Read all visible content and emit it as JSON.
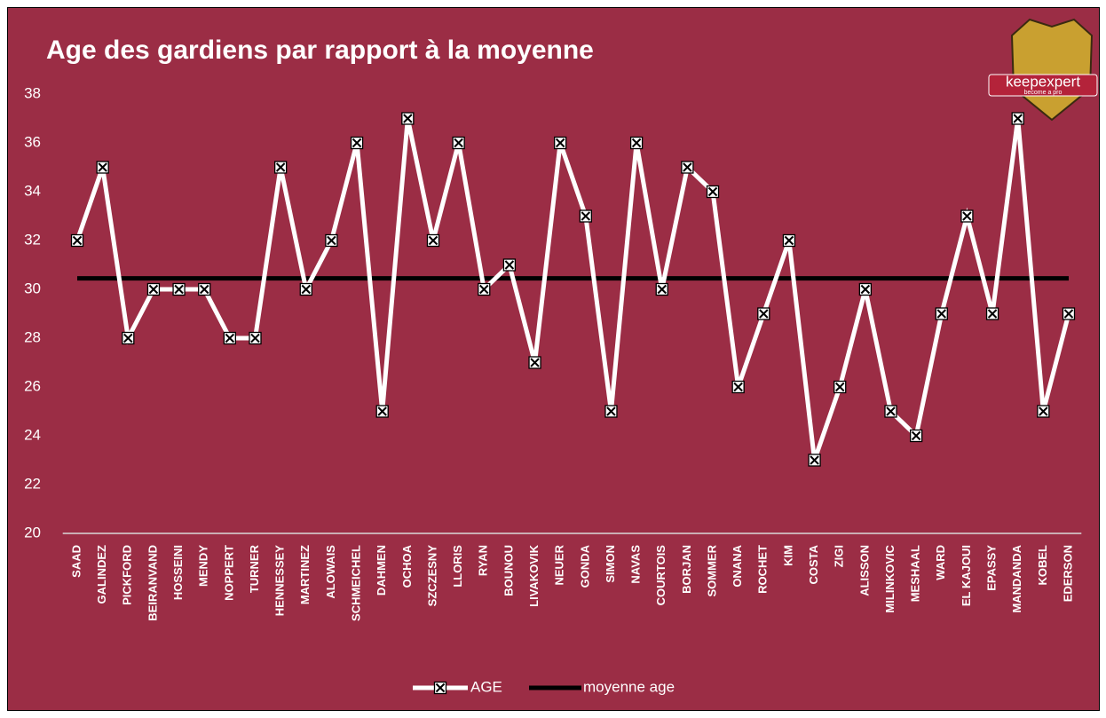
{
  "chart_data": {
    "type": "line",
    "title": "Age des gardiens par rapport à la moyenne",
    "categories": [
      "SAAD",
      "GALINDEZ",
      "PICKFORD",
      "BEIRANVAND",
      "HOSSEINI",
      "MENDY",
      "NOPPERT",
      "TURNER",
      "HENNESSEY",
      "MARTINEZ",
      "ALOWAIS",
      "SCHMEICHEL",
      "DAHMEN",
      "OCHOA",
      "SZCZESNY",
      "LLORIS",
      "RYAN",
      "BOUNOU",
      "LIVAKOVIK",
      "NEUER",
      "GONDA",
      "SIMON",
      "NAVAS",
      "COURTOIS",
      "BORJAN",
      "SOMMER",
      "ONANA",
      "ROCHET",
      "KIM",
      "COSTA",
      "ZIGI",
      "ALISSON",
      "MILINKOVIC",
      "MESHAAL",
      "WARD",
      "EL KAJOUI",
      "EPASSY",
      "MANDANDA",
      "KOBEL",
      "EDERSON"
    ],
    "series": [
      {
        "name": "AGE",
        "color": "#ffffff",
        "marker": "x-square",
        "values": [
          32,
          35,
          28,
          30,
          30,
          30,
          28,
          28,
          35,
          30,
          32,
          36,
          25,
          37,
          32,
          36,
          30,
          31,
          27,
          36,
          33,
          25,
          36,
          30,
          35,
          34,
          26,
          29,
          32,
          23,
          26,
          30,
          25,
          24,
          29,
          33,
          29,
          37,
          25,
          29
        ]
      },
      {
        "name": "moyenne age",
        "color": "#000000",
        "values": [
          30.45,
          30.45,
          30.45,
          30.45,
          30.45,
          30.45,
          30.45,
          30.45,
          30.45,
          30.45,
          30.45,
          30.45,
          30.45,
          30.45,
          30.45,
          30.45,
          30.45,
          30.45,
          30.45,
          30.45,
          30.45,
          30.45,
          30.45,
          30.45,
          30.45,
          30.45,
          30.45,
          30.45,
          30.45,
          30.45,
          30.45,
          30.45,
          30.45,
          30.45,
          30.45,
          30.45,
          30.45,
          30.45,
          30.45,
          30.45
        ]
      }
    ],
    "ylim": [
      20,
      38
    ],
    "yticks": [
      20,
      22,
      24,
      26,
      28,
      30,
      32,
      34,
      36,
      38
    ],
    "grid": false,
    "legend": "bottom"
  },
  "logo": {
    "name": "keepexpert",
    "tagline": "become a pro"
  }
}
